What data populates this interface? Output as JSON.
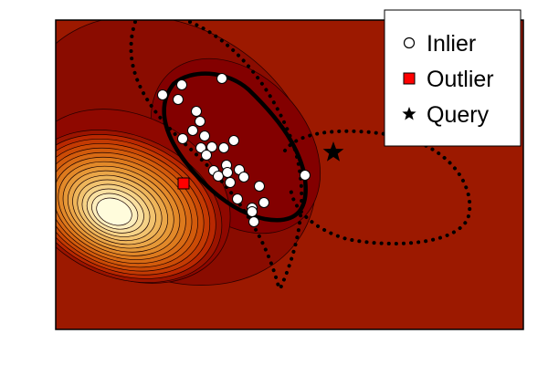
{
  "chart_data": {
    "type": "scatter",
    "title": "",
    "xlabel": "",
    "ylabel": "",
    "grid": false,
    "legend_position": "top-right",
    "background": "contour-density",
    "legend": [
      {
        "key": "inlier",
        "label": "Inlier",
        "marker": "circle",
        "color": "#ffffff"
      },
      {
        "key": "outlier",
        "label": "Outlier",
        "marker": "square",
        "color": "#ff0000"
      },
      {
        "key": "query",
        "label": "Query",
        "marker": "star",
        "color": "#000000"
      }
    ],
    "series": [
      {
        "name": "Inlier",
        "marker": "circle",
        "points": [
          [
            178,
            104
          ],
          [
            199,
            93
          ],
          [
            243,
            86
          ],
          [
            195,
            109
          ],
          [
            215,
            122
          ],
          [
            219,
            133
          ],
          [
            211,
            143
          ],
          [
            224,
            149
          ],
          [
            232,
            161
          ],
          [
            245,
            162
          ],
          [
            256,
            154
          ],
          [
            200,
            152
          ],
          [
            220,
            162
          ],
          [
            226,
            170
          ],
          [
            248,
            181
          ],
          [
            234,
            187
          ],
          [
            239,
            193
          ],
          [
            249,
            189
          ],
          [
            262,
            186
          ],
          [
            252,
            200
          ],
          [
            267,
            194
          ],
          [
            284,
            204
          ],
          [
            276,
            228
          ],
          [
            260,
            218
          ],
          [
            276,
            232
          ],
          [
            289,
            222
          ],
          [
            278,
            243
          ],
          [
            334,
            192
          ]
        ]
      },
      {
        "name": "Outlier",
        "marker": "square",
        "points": [
          [
            201,
            201
          ]
        ]
      },
      {
        "name": "Query",
        "marker": "star",
        "points": [
          [
            365,
            167
          ]
        ]
      }
    ],
    "colors": {
      "frame": "#000000",
      "contour_line": "#1a0000",
      "decision_boundary": "#000000"
    }
  }
}
